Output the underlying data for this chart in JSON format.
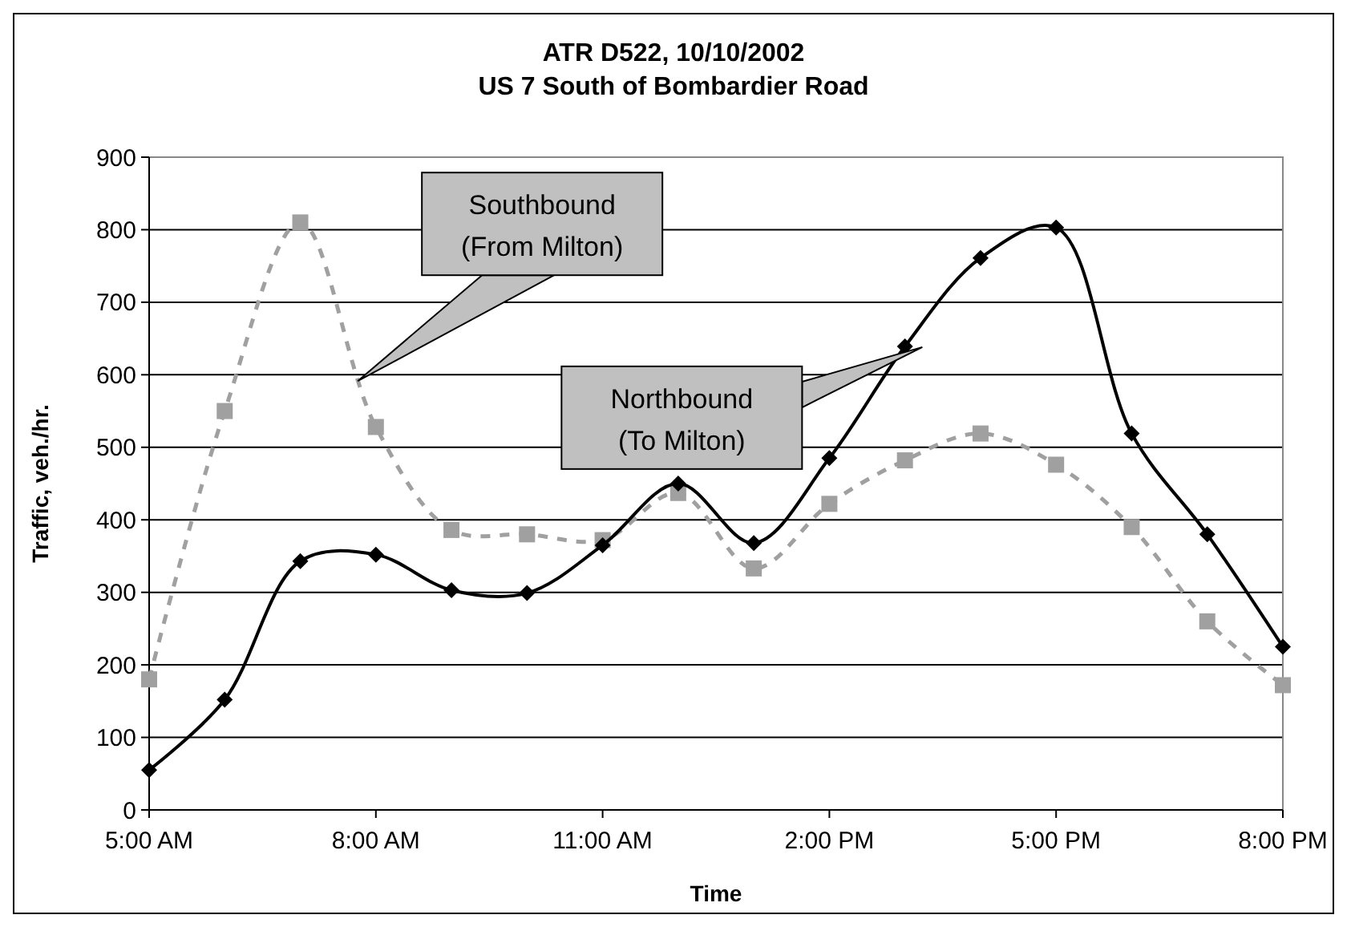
{
  "chart_data": {
    "type": "line",
    "title": "ATR D522, 10/10/2002\nUS 7 South of Bombardier Road",
    "xlabel": "Time",
    "ylabel": "Traffic, veh./hr.",
    "x": [
      5,
      6,
      7,
      8,
      9,
      10,
      11,
      12,
      13,
      14,
      15,
      16,
      17,
      18,
      19,
      20
    ],
    "series": [
      {
        "color": "#000000",
        "marker": "diamond",
        "line_style": "solid",
        "values": [
          55,
          152,
          343,
          352,
          303,
          299,
          365,
          450,
          368,
          485,
          639,
          761,
          803,
          519,
          380,
          225
        ]
      },
      {
        "color": "#a0a0a0",
        "marker": "square",
        "line_style": "dashed",
        "values": [
          180,
          550,
          810,
          528,
          386,
          380,
          372,
          437,
          333,
          422,
          482,
          519,
          476,
          390,
          260,
          172
        ]
      }
    ],
    "annotations": [
      "Southbound\n(From Milton)",
      "Northbound\n(To Milton)"
    ],
    "xlim": [
      5,
      20
    ],
    "xticks": [
      {
        "value": 5,
        "label": "5:00 AM"
      },
      {
        "value": 8,
        "label": "8:00 AM"
      },
      {
        "value": 11,
        "label": "11:00 AM"
      },
      {
        "value": 14,
        "label": "2:00 PM"
      },
      {
        "value": 17,
        "label": "5:00 PM"
      },
      {
        "value": 20,
        "label": "8:00 PM"
      }
    ],
    "ylim": [
      0,
      900
    ],
    "yticks": [
      0,
      100,
      200,
      300,
      400,
      500,
      600,
      700,
      800,
      900
    ],
    "grid": "y"
  }
}
